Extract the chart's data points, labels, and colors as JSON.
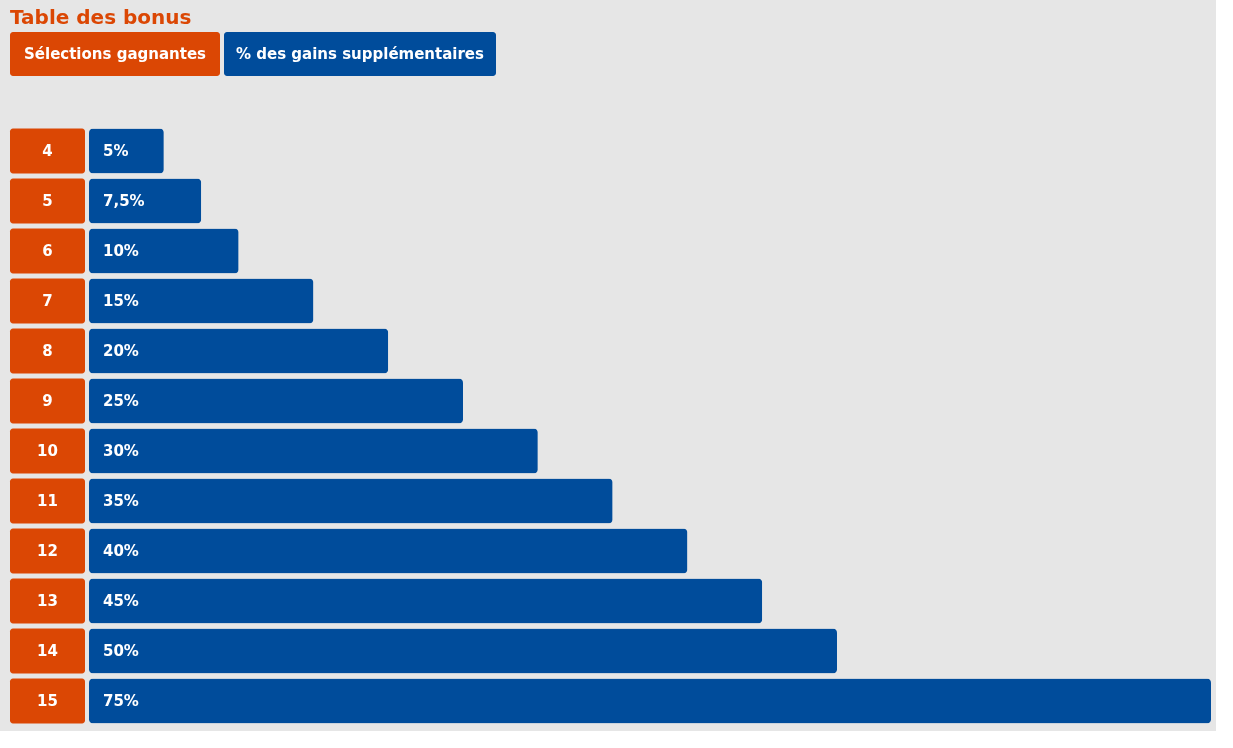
{
  "chart_data": {
    "type": "bar",
    "orientation": "horizontal",
    "title": "Table des bonus",
    "ylabel": "Sélections gagnantes",
    "xlabel": "% des gains supplémentaires",
    "categories": [
      "4",
      "5",
      "6",
      "7",
      "8",
      "9",
      "10",
      "11",
      "12",
      "13",
      "14",
      "15"
    ],
    "series": [
      {
        "color": "#004c9b",
        "values": [
          5,
          7.5,
          10,
          15,
          20,
          25,
          30,
          35,
          40,
          45,
          50,
          75
        ],
        "value_labels": [
          "5%",
          "7,5%",
          "10%",
          "15%",
          "20%",
          "25%",
          "30%",
          "35%",
          "40%",
          "45%",
          "50%",
          "75%"
        ]
      }
    ],
    "grid": false,
    "tick_labels": false
  }
}
